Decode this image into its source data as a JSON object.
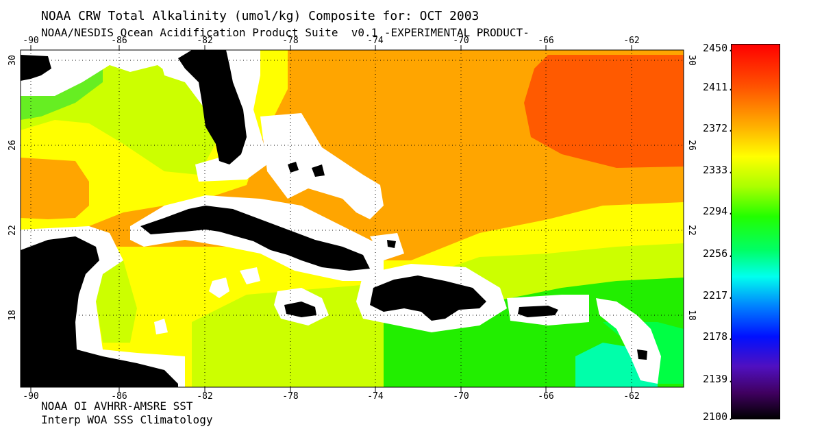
{
  "title": "NOAA CRW Total Alkalinity (umol/kg) Composite for: OCT 2003",
  "subtitle": "NOAA/NESDIS Ocean Acidification Product Suite  v0.1 -EXPERIMENTAL PRODUCT-",
  "footer": {
    "line1": "NOAA OI AVHRR-AMSRE SST",
    "line2": "Interp WOA SSS Climatology"
  },
  "map": {
    "lon_range": [
      -90.5,
      -59.5
    ],
    "lat_range": [
      15,
      30.5
    ],
    "lon_ticks": [
      "-90",
      "-86",
      "-82",
      "-78",
      "-74",
      "-70",
      "-66",
      "-62"
    ],
    "lat_ticks": [
      "30",
      "26",
      "22",
      "18"
    ],
    "colors": {
      "land": "#000000",
      "coast_mask": "#ffffff",
      "orange": "#ffa500",
      "red_orange": "#ff5a00",
      "yellow": "#ffff00",
      "yellow_green": "#ccff00",
      "green": "#22ee00",
      "bright_green": "#00ff44",
      "teal": "#00ffaa"
    }
  },
  "colorbar": {
    "labels": [
      "2450.",
      "2411.",
      "2372.",
      "2333.",
      "2294.",
      "2256.",
      "2217.",
      "2178.",
      "2139.",
      "2100."
    ],
    "min": 2100,
    "max": 2450
  }
}
